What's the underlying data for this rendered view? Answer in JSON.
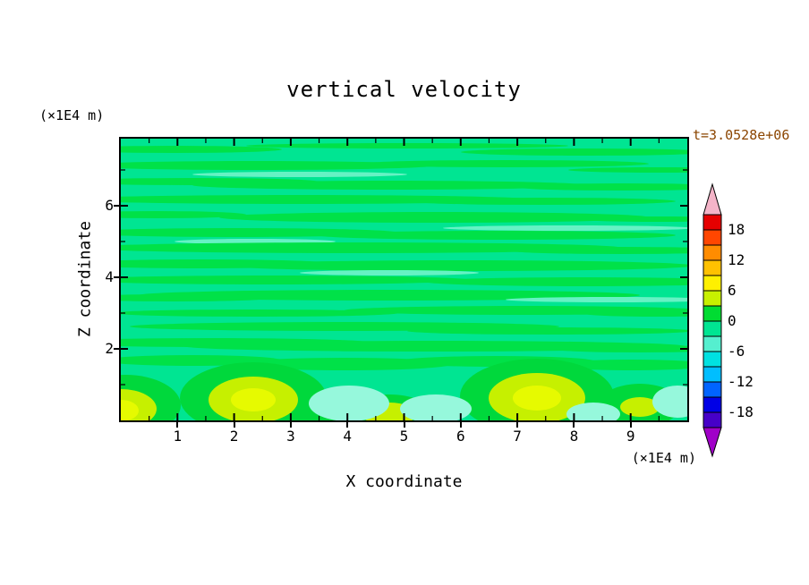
{
  "title": "vertical velocity",
  "time_label": "t=3.0528e+06",
  "axes": {
    "x_label": "X coordinate",
    "y_label": "Z coordinate",
    "x_unit_label": "(×1E4 m)",
    "y_unit_label": "(×1E4 m)",
    "x_tick_labels": [
      "1",
      "2",
      "3",
      "4",
      "5",
      "6",
      "7",
      "8",
      "9"
    ],
    "x_tick_values": [
      1,
      2,
      3,
      4,
      5,
      6,
      7,
      8,
      9
    ],
    "x_minor_tick_values": [
      0.5,
      1.5,
      2.5,
      3.5,
      4.5,
      5.5,
      6.5,
      7.5,
      8.5,
      9.5
    ],
    "y_tick_labels": [
      "2",
      "4",
      "6"
    ],
    "y_tick_values": [
      2,
      4,
      6
    ],
    "y_minor_tick_values": [
      1,
      3,
      5,
      7
    ],
    "x_range": [
      0,
      10
    ],
    "y_range": [
      0,
      7.875
    ]
  },
  "colorbar": {
    "labels": [
      "18",
      "12",
      "6",
      "0",
      "-6",
      "-12",
      "-18"
    ],
    "labeled_levels": [
      18,
      12,
      6,
      0,
      -6,
      -12,
      -18
    ],
    "level_step": 3,
    "segment_colors": [
      "#E60000",
      "#FF4600",
      "#FF8C00",
      "#FFC100",
      "#FFF000",
      "#C8F000",
      "#00DC32",
      "#00E592",
      "#55EFCF",
      "#00E1E1",
      "#00BEFF",
      "#0064FF",
      "#0000E6",
      "#4600C8"
    ],
    "arrow_top_color": "#F4B4C8",
    "arrow_bottom_color": "#A000C8"
  },
  "chart_data": {
    "type": "heatmap",
    "title": "vertical velocity",
    "xlabel": "X coordinate (×1E4 m)",
    "ylabel": "Z coordinate (×1E4 m)",
    "x_range": [
      0,
      10
    ],
    "z_range": [
      0,
      7.875
    ],
    "time_annotation": "t=3.0528e+06",
    "contour_levels": [
      -18,
      -15,
      -12,
      -9,
      -6,
      -3,
      0,
      3,
      6,
      9,
      12,
      15,
      18
    ],
    "legend_position": "right-colorbar",
    "description": "Contour fill plot of vertical velocity. Most of the domain sits in the near-zero band (spring green). Thin horizontal streaks of weakly positive velocity thread the interior. In the bottom boundary region (z below about 1.5x1E4 m) there are stronger positive cells (yellow-green blobs near x=0.2, 2.3, 4.7, 7.3, 9.0 x1E4 m) and weak negative patches (pale cyan) between them.",
    "palette": {
      "bg": "#00E592",
      "g": "#00E148",
      "m": "#66F2C4",
      "G": "#00D83C",
      "y": "#C6F000",
      "Y": "#E6FA00",
      "c": "#96F8DC"
    },
    "texture": {
      "streaks": [
        [
          60,
          12,
          120,
          4,
          "g"
        ],
        [
          320,
          8,
          180,
          3,
          "g"
        ],
        [
          520,
          15,
          140,
          4,
          "g"
        ],
        [
          150,
          30,
          200,
          5,
          "g"
        ],
        [
          430,
          28,
          160,
          4,
          "g"
        ],
        [
          600,
          35,
          100,
          3,
          "g"
        ],
        [
          200,
          40,
          120,
          3,
          "m"
        ],
        [
          80,
          48,
          140,
          4,
          "g"
        ],
        [
          300,
          52,
          220,
          5,
          "g"
        ],
        [
          560,
          54,
          120,
          4,
          "g"
        ],
        [
          200,
          68,
          260,
          5,
          "g"
        ],
        [
          470,
          70,
          150,
          4,
          "g"
        ],
        [
          40,
          85,
          100,
          4,
          "g"
        ],
        [
          350,
          88,
          240,
          6,
          "g"
        ],
        [
          600,
          90,
          90,
          3,
          "g"
        ],
        [
          500,
          100,
          140,
          3,
          "m"
        ],
        [
          130,
          105,
          180,
          5,
          "g"
        ],
        [
          420,
          108,
          200,
          5,
          "g"
        ],
        [
          150,
          115,
          90,
          3,
          "m"
        ],
        [
          260,
          122,
          300,
          6,
          "g"
        ],
        [
          560,
          125,
          130,
          4,
          "g"
        ],
        [
          90,
          140,
          150,
          5,
          "g"
        ],
        [
          380,
          142,
          260,
          6,
          "g"
        ],
        [
          300,
          150,
          100,
          3,
          "m"
        ],
        [
          170,
          158,
          220,
          5,
          "g"
        ],
        [
          520,
          160,
          180,
          5,
          "g"
        ],
        [
          300,
          175,
          280,
          6,
          "g"
        ],
        [
          60,
          178,
          110,
          4,
          "g"
        ],
        [
          550,
          180,
          120,
          3,
          "m"
        ],
        [
          450,
          192,
          200,
          5,
          "g"
        ],
        [
          150,
          195,
          160,
          4,
          "g"
        ],
        [
          600,
          196,
          80,
          3,
          "g"
        ],
        [
          250,
          210,
          240,
          5,
          "g"
        ],
        [
          480,
          215,
          160,
          4,
          "g"
        ],
        [
          100,
          228,
          180,
          5,
          "g"
        ],
        [
          350,
          232,
          280,
          6,
          "g"
        ],
        [
          580,
          235,
          100,
          4,
          "g"
        ],
        [
          80,
          248,
          100,
          6,
          "g"
        ],
        [
          250,
          252,
          120,
          7,
          "g"
        ],
        [
          420,
          249,
          110,
          6,
          "g"
        ],
        [
          570,
          253,
          90,
          6,
          "g"
        ]
      ],
      "blobs": [
        [
          5,
          298,
          62,
          34,
          "G"
        ],
        [
          148,
          290,
          82,
          40,
          "G"
        ],
        [
          250,
          310,
          70,
          16,
          "G"
        ],
        [
          300,
          306,
          46,
          20,
          "G"
        ],
        [
          465,
          288,
          86,
          42,
          "G"
        ],
        [
          580,
          298,
          46,
          24,
          "G"
        ],
        [
          0,
          302,
          40,
          22,
          "y"
        ],
        [
          148,
          292,
          50,
          26,
          "y"
        ],
        [
          300,
          308,
          30,
          13,
          "y"
        ],
        [
          465,
          290,
          54,
          28,
          "y"
        ],
        [
          580,
          300,
          22,
          11,
          "y"
        ],
        [
          0,
          304,
          20,
          12,
          "Y"
        ],
        [
          148,
          292,
          25,
          13,
          "Y"
        ],
        [
          465,
          290,
          27,
          14,
          "Y"
        ],
        [
          255,
          296,
          45,
          20,
          "c"
        ],
        [
          352,
          302,
          40,
          16,
          "c"
        ],
        [
          528,
          308,
          30,
          13,
          "c"
        ],
        [
          622,
          294,
          28,
          18,
          "c"
        ]
      ]
    }
  }
}
